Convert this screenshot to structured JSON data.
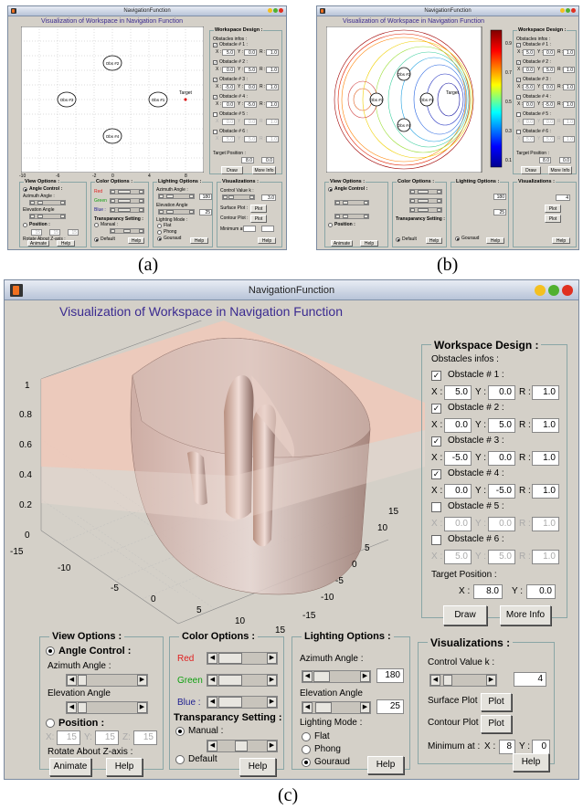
{
  "captions": {
    "a": "(a)",
    "b": "(b)",
    "c": "(c)"
  },
  "window": {
    "title": "NavigationFunction"
  },
  "plot": {
    "title": "Visualization of Workspace in Navigation Function",
    "target_label": "Target",
    "z_ticks": [
      "1",
      "0.8",
      "0.6",
      "0.4",
      "0.2",
      "0"
    ],
    "x_ticks": [
      "-15",
      "-10",
      "-5",
      "0",
      "5",
      "10",
      "15"
    ],
    "y_ticks": [
      "15",
      "10",
      "5",
      "0",
      "-5",
      "-10",
      "-15"
    ],
    "xy_ticks_small": [
      "-10",
      "-8",
      "-6",
      "-4",
      "-2",
      "0",
      "2",
      "4",
      "6",
      "8",
      "10"
    ],
    "y_ticks_small": [
      "10",
      "8",
      "6",
      "4",
      "2",
      "0",
      "-2",
      "-4",
      "-6",
      "-8",
      "-10"
    ],
    "colorbar_ticks": [
      "0.9",
      "0.8",
      "0.7",
      "0.6",
      "0.5",
      "0.4",
      "0.3",
      "0.2",
      "0.1"
    ],
    "obstacle_labels": [
      "Obs #1",
      "Obs #2",
      "Obs #3",
      "Obs #4"
    ]
  },
  "workspace": {
    "title": "Workspace Design :",
    "obstacles_label": "Obstacles infos :",
    "obstacles": [
      {
        "name": "Obstacle # 1 :",
        "checked": true,
        "x": "5.0",
        "y": "0.0",
        "r": "1.0"
      },
      {
        "name": "Obstacle # 2 :",
        "checked": true,
        "x": "0.0",
        "y": "5.0",
        "r": "1.0"
      },
      {
        "name": "Obstacle # 3 :",
        "checked": true,
        "x": "-5.0",
        "y": "0.0",
        "r": "1.0"
      },
      {
        "name": "Obstacle # 4 :",
        "checked": true,
        "x": "0.0",
        "y": "-5.0",
        "r": "1.0"
      },
      {
        "name": "Obstacle # 5 :",
        "checked": false,
        "x": "0.0",
        "y": "0.0",
        "r": "1.0"
      },
      {
        "name": "Obstacle # 6 :",
        "checked": false,
        "x": "5.0",
        "y": "5.0",
        "r": "1.0"
      }
    ],
    "x_label": "X :",
    "y_label": "Y :",
    "r_label": "R :",
    "target_label": "Target Position :",
    "target_x": "8.0",
    "target_y": "0.0",
    "draw": "Draw",
    "more_info": "More Info"
  },
  "view": {
    "title": "View Options :",
    "angle_control": "Angle Control :",
    "azimuth": "Azimuth Angle :",
    "elevation": "Elevation Angle",
    "position": "Position :",
    "pos_x": "15",
    "pos_y": "15",
    "pos_z": "15",
    "x_lbl": "X:",
    "y_lbl": "Y:",
    "z_lbl": "Z:",
    "rotate": "Rotate About Z-axis :",
    "animate": "Animate",
    "help": "Help"
  },
  "color": {
    "title": "Color Options :",
    "red": "Red",
    "green": "Green",
    "blue": "Blue :",
    "transparency": "Transparancy Setting :",
    "manual": "Manual :",
    "default": "Default",
    "help": "Help",
    "red_color": "#e02020",
    "green_color": "#10a010",
    "blue_color": "#202090"
  },
  "lighting": {
    "title": "Lighting Options :",
    "azimuth": "Azimuth Angle :",
    "azimuth_val": "180",
    "elevation": "Elevation Angle",
    "elevation_val": "25",
    "mode": "Lighting Mode :",
    "flat": "Flat",
    "phong": "Phong",
    "gouraud": "Gouraud",
    "help": "Help"
  },
  "vis": {
    "title": "Visualizations :",
    "control": "Control Value k :",
    "k": "4",
    "surface": "Surface Plot :",
    "contour": "Contour Plot :",
    "plot": "Plot",
    "minimum": "Minimum at :",
    "x_lbl": "X :",
    "y_lbl": "Y :",
    "min_x": "8",
    "min_y": "0",
    "help": "Help",
    "k_a": "3.0"
  }
}
